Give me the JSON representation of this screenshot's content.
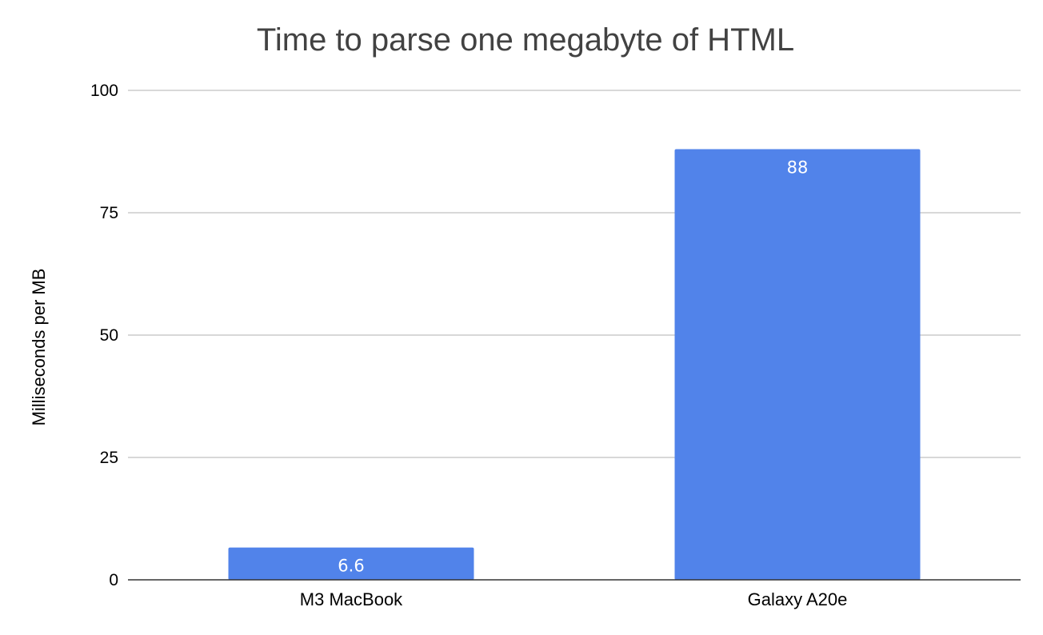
{
  "chart_data": {
    "type": "bar",
    "title": "Time to parse one megabyte of HTML",
    "xlabel": "",
    "ylabel": "Milliseconds per MB",
    "categories": [
      "M3 MacBook",
      "Galaxy A20e"
    ],
    "series": [
      {
        "values": [
          6.6,
          88
        ],
        "color": "#5183ea"
      }
    ],
    "data_labels": [
      "6.6",
      "88"
    ],
    "ylim": [
      0,
      100
    ],
    "yticks": [
      0,
      25,
      50,
      75,
      100
    ],
    "ytick_labels": [
      "0",
      "25",
      "50",
      "75",
      "100"
    ],
    "grid": true,
    "legend": "none"
  }
}
